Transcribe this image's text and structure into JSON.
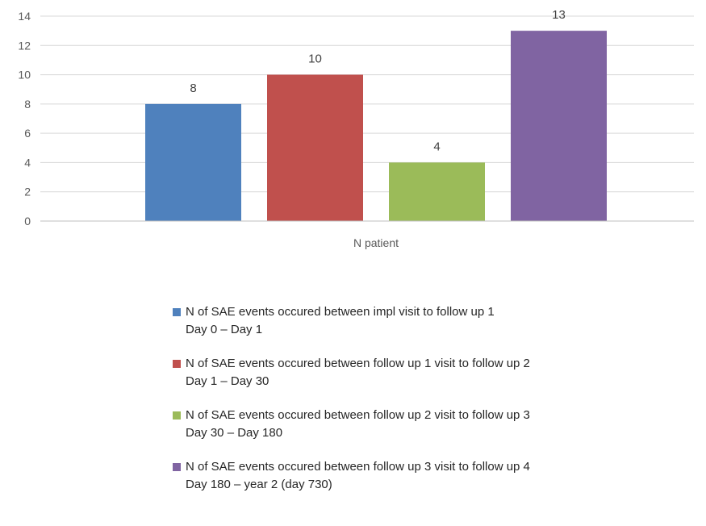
{
  "chart_data": {
    "type": "bar",
    "categories": [
      "N patient"
    ],
    "series": [
      {
        "name": "N of SAE events occured between impl visit to follow up 1",
        "subtitle": "Day 0 – Day 1",
        "values": [
          8
        ],
        "color": "#4f81bd"
      },
      {
        "name": "N of SAE events occured between follow up 1 visit to follow up 2",
        "subtitle": "Day 1 – Day 30",
        "values": [
          10
        ],
        "color": "#c0504d"
      },
      {
        "name": "N of SAE events occured between follow up 2 visit to follow up 3",
        "subtitle": "Day 30 – Day 180",
        "values": [
          4
        ],
        "color": "#9bbb59"
      },
      {
        "name": "N of SAE events occured between follow up 3 visit to follow up 4",
        "subtitle": "Day 180 – year 2 (day 730)",
        "values": [
          13
        ],
        "color": "#8064a2"
      }
    ],
    "ylim": [
      0,
      14
    ],
    "yticks": [
      0,
      2,
      4,
      6,
      8,
      10,
      12,
      14
    ],
    "grid": true,
    "legend_position": "bottom"
  }
}
